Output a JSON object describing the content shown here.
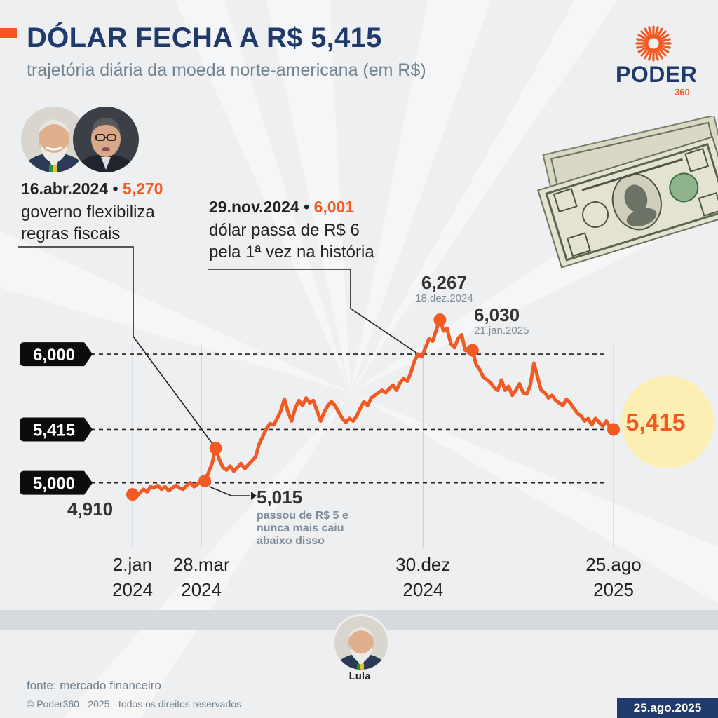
{
  "header": {
    "title": "DÓLAR FECHA A R$ 5,415",
    "subtitle": "trajetória diária da moeda norte-americana (em R$)"
  },
  "brand": {
    "name": "PODER",
    "number": "360",
    "accent_color": "#f15a22",
    "navy_color": "#1f3a6b"
  },
  "notes": [
    {
      "date": "16.abr.2024",
      "value": "5,270",
      "lines": [
        "governo flexibiliza",
        "regras fiscais"
      ]
    },
    {
      "date": "29.nov.2024",
      "value": "6,001",
      "lines": [
        "dólar passa de R$ 6",
        "pela 1ª vez na história"
      ]
    }
  ],
  "photos": [
    "lula-portrait",
    "haddad-portrait",
    "dollar-bills"
  ],
  "chart_data": {
    "type": "line",
    "x_start": "2024-01-02",
    "x_end": "2025-08-25",
    "ylim": [
      4.9,
      6.3
    ],
    "series": [
      {
        "values": [
          4.91,
          4.89,
          4.92,
          4.95,
          4.93,
          4.97,
          4.96,
          4.98,
          4.95,
          4.97,
          4.94,
          4.96,
          4.98,
          4.96,
          4.95,
          4.98,
          5.0,
          4.97,
          4.99,
          5.02,
          5.015,
          5.08,
          5.15,
          5.27,
          5.18,
          5.12,
          5.1,
          5.13,
          5.09,
          5.12,
          5.15,
          5.11,
          5.14,
          5.17,
          5.2,
          5.3,
          5.36,
          5.42,
          5.46,
          5.45,
          5.5,
          5.56,
          5.65,
          5.55,
          5.48,
          5.58,
          5.64,
          5.6,
          5.66,
          5.62,
          5.64,
          5.56,
          5.48,
          5.55,
          5.6,
          5.63,
          5.6,
          5.55,
          5.5,
          5.47,
          5.5,
          5.48,
          5.52,
          5.58,
          5.63,
          5.6,
          5.66,
          5.68,
          5.7,
          5.72,
          5.7,
          5.73,
          5.76,
          5.72,
          5.78,
          5.81,
          5.79,
          5.86,
          5.95,
          6.001,
          5.98,
          6.05,
          6.12,
          6.1,
          6.19,
          6.267,
          6.18,
          6.2,
          6.08,
          6.05,
          6.12,
          6.15,
          6.03,
          6.05,
          6.03,
          5.92,
          5.88,
          5.82,
          5.8,
          5.78,
          5.74,
          5.72,
          5.8,
          5.72,
          5.75,
          5.68,
          5.72,
          5.77,
          5.7,
          5.69,
          5.76,
          5.93,
          5.82,
          5.72,
          5.7,
          5.66,
          5.68,
          5.64,
          5.62,
          5.6,
          5.65,
          5.62,
          5.58,
          5.54,
          5.52,
          5.48,
          5.5,
          5.45,
          5.5,
          5.47,
          5.44,
          5.48,
          5.43,
          5.415
        ]
      }
    ],
    "gridlines": [
      {
        "value": 6.0,
        "label": "6,000"
      },
      {
        "value": 5.415,
        "label": "5,415"
      },
      {
        "value": 5.0,
        "label": "5,000"
      }
    ],
    "x_ticks": [
      {
        "date": "2024-01-02",
        "line1": "2.jan",
        "line2": "2024"
      },
      {
        "date": "2024-03-28",
        "line1": "28.mar",
        "line2": "2024"
      },
      {
        "date": "2024-12-30",
        "line1": "30.dez",
        "line2": "2024"
      },
      {
        "date": "2025-08-25",
        "line1": "25.ago",
        "line2": "2025"
      }
    ],
    "annotations": {
      "start_value": "4,910",
      "end_value": "5,415",
      "peak": {
        "value": "6,267",
        "date": "18.dez.2024"
      },
      "jan": {
        "value": "6,030",
        "date": "21.jan.2025"
      },
      "mar": {
        "value": "5,015",
        "text": [
          "passou de R$ 5 e",
          "nunca mais caiu",
          "abaixo disso"
        ]
      }
    }
  },
  "footer": {
    "president_label": "Lula",
    "source": "fonte: mercado financeiro",
    "copyright": "© Poder360 - 2025 - todos os direitos reservados",
    "date": "25.ago.2025"
  }
}
